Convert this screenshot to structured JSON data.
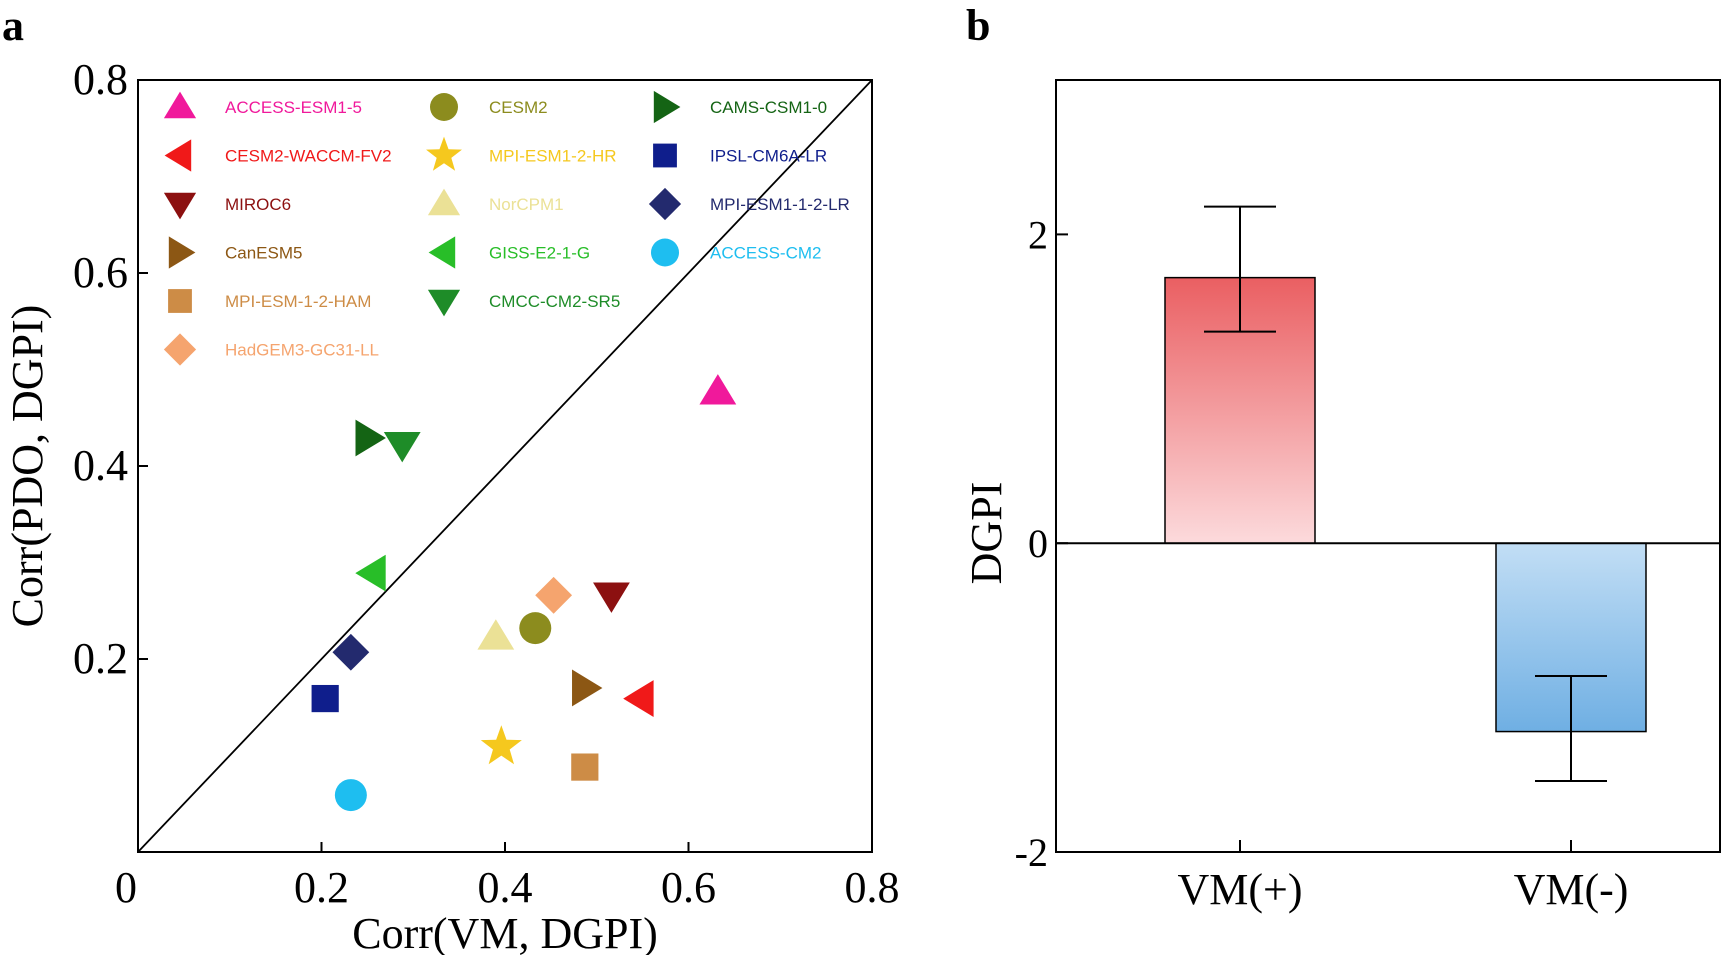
{
  "chart_data": [
    {
      "panel_label": "a",
      "type": "scatter",
      "xlabel": "Corr(VM, DGPI)",
      "ylabel": "Corr(PDO, DGPI)",
      "xlim": [
        0,
        0.8
      ],
      "ylim": [
        0,
        0.8
      ],
      "xticks": [
        "0",
        "0.2",
        "0.4",
        "0.6",
        "0.8"
      ],
      "yticks": [
        "0.2",
        "0.4",
        "0.6",
        "0.8"
      ],
      "reference_line": "y = x",
      "legend_placement": "top-left",
      "series": [
        {
          "name": "ACCESS-ESM1-5",
          "marker": "triangle-up",
          "color": "#F0199B",
          "x": 0.632,
          "y": 0.477
        },
        {
          "name": "CESM2-WACCM-FV2",
          "marker": "triangle-left",
          "color": "#F01919",
          "x": 0.548,
          "y": 0.159
        },
        {
          "name": "MIROC6",
          "marker": "triangle-down",
          "color": "#8C1010",
          "x": 0.516,
          "y": 0.266
        },
        {
          "name": "CanESM5",
          "marker": "triangle-right",
          "color": "#8C5714",
          "x": 0.487,
          "y": 0.17
        },
        {
          "name": "MPI-ESM-1-2-HAM",
          "marker": "square",
          "color": "#CD8C46",
          "x": 0.487,
          "y": 0.088
        },
        {
          "name": "HadGEM3-GC31-LL",
          "marker": "diamond",
          "color": "#F5A46E",
          "x": 0.453,
          "y": 0.266
        },
        {
          "name": "CESM2",
          "marker": "circle",
          "color": "#8C8C1E",
          "x": 0.433,
          "y": 0.232
        },
        {
          "name": "MPI-ESM1-2-HR",
          "marker": "star",
          "color": "#F5C81E",
          "x": 0.396,
          "y": 0.109
        },
        {
          "name": "NorCPM1",
          "marker": "triangle-up",
          "color": "#EBE196",
          "x": 0.39,
          "y": 0.223
        },
        {
          "name": "GISS-E2-1-G",
          "marker": "triangle-left",
          "color": "#28BE28",
          "x": 0.256,
          "y": 0.289
        },
        {
          "name": "CMCC-CM2-SR5",
          "marker": "triangle-down",
          "color": "#1E8C28",
          "x": 0.288,
          "y": 0.422
        },
        {
          "name": "CAMS-CSM1-0",
          "marker": "triangle-right",
          "color": "#146414",
          "x": 0.251,
          "y": 0.429
        },
        {
          "name": "IPSL-CM6A-LR",
          "marker": "square",
          "color": "#0F1E8C",
          "x": 0.204,
          "y": 0.159
        },
        {
          "name": "MPI-ESM1-1-2-LR",
          "marker": "diamond",
          "color": "#232A6E",
          "x": 0.232,
          "y": 0.207
        },
        {
          "name": "ACCESS-CM2",
          "marker": "circle",
          "color": "#1EBEF0",
          "x": 0.232,
          "y": 0.059
        }
      ]
    },
    {
      "panel_label": "b",
      "type": "bar",
      "ylabel": "DGPI",
      "categories": [
        "VM(+)",
        "VM(-)"
      ],
      "values": [
        1.72,
        -1.22
      ],
      "error_low": [
        1.37,
        -1.54
      ],
      "error_high": [
        2.18,
        -0.86
      ],
      "ylim": [
        -2,
        3
      ],
      "yticks": [
        "-2",
        "0",
        "2"
      ],
      "bar_colors": [
        {
          "top": "#EA5F62",
          "bottom": "#FCDADC"
        },
        {
          "top": "#C2DEF5",
          "bottom": "#6FAFE3"
        }
      ]
    }
  ]
}
